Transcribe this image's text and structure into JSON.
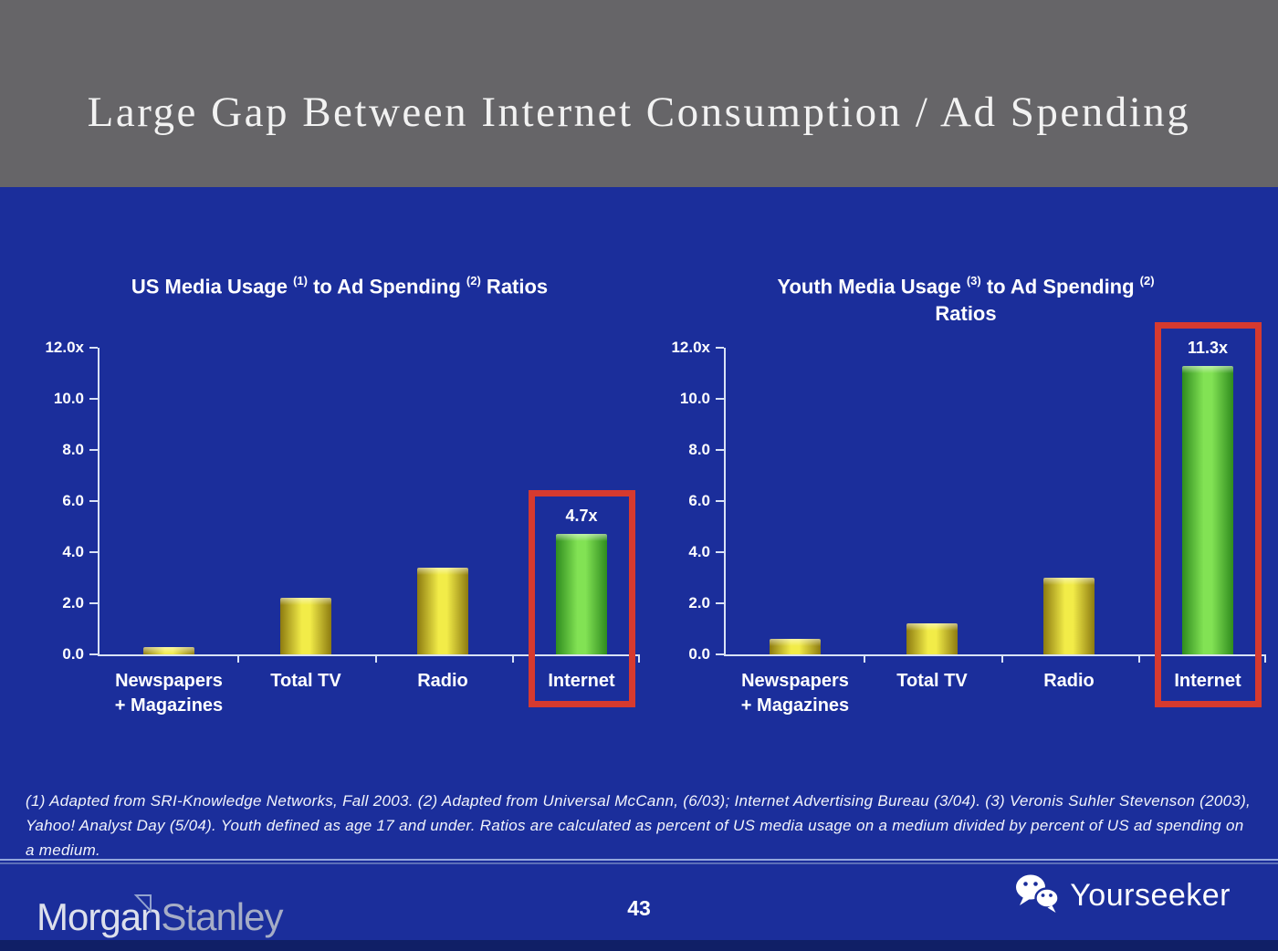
{
  "slide": {
    "title": "Large Gap Between Internet Consumption / Ad Spending",
    "page_number": "43",
    "footnote": "(1) Adapted from SRI-Knowledge Networks, Fall 2003.  (2) Adapted from Universal McCann, (6/03); Internet Advertising Bureau (3/04). (3) Veronis Suhler Stevenson (2003), Yahoo! Analyst Day (5/04).  Youth defined as age 17 and under.  Ratios are calculated as percent of US media usage on a medium divided by percent of US ad spending on a medium.",
    "brand": {
      "morgan": "Morgan",
      "stanley": "Stanley",
      "mark": "triangle-flag-icon"
    },
    "watermark": {
      "label": "Yourseeker",
      "icon": "wechat-icon"
    }
  },
  "colors": {
    "header_gray": "#666568",
    "body_blue": "#1B2E9B",
    "bottom_strip_blue": "#101F66",
    "axis_light": "#D9E2F5",
    "text_white": "#FFFFFF",
    "footnote_white": "#F2F4FB",
    "bar_yellow_center": "#F2EC48",
    "bar_yellow_edge": "#8D7B10",
    "bar_green_center": "#82E254",
    "bar_green_edge": "#2F8C1E",
    "highlight_red": "#D63A2F",
    "logo_morgan": "#DDE0EC",
    "logo_stanley": "#A6ADC6",
    "footer_rule_light": "#93A6DC",
    "footer_rule_dark": "#5C6FB8"
  },
  "chart_data": [
    {
      "type": "bar",
      "title": "US Media Usage (1) to Ad Spending (2) Ratios",
      "title_segments": [
        [
          "text",
          "US Media Usage "
        ],
        [
          "sup",
          "(1)"
        ],
        [
          "text",
          " to Ad Spending "
        ],
        [
          "sup",
          "(2)"
        ],
        [
          "text",
          " Ratios"
        ]
      ],
      "categories": [
        "Newspapers + Magazines",
        "Total TV",
        "Radio",
        "Internet"
      ],
      "categories_lines": [
        [
          "Newspapers",
          "+ Magazines"
        ],
        [
          "Total TV"
        ],
        [
          "Radio"
        ],
        [
          "Internet"
        ]
      ],
      "values": [
        0.3,
        2.2,
        3.4,
        4.7
      ],
      "bar_colors": [
        "yellow",
        "yellow",
        "yellow",
        "green"
      ],
      "data_labels": [
        null,
        null,
        null,
        "4.7x"
      ],
      "highlight_index": 3,
      "xlabel": "",
      "ylabel": "",
      "ylim": [
        0,
        12
      ],
      "yticks": [
        {
          "v": 12,
          "label": "12.0x"
        },
        {
          "v": 10,
          "label": "10.0"
        },
        {
          "v": 8,
          "label": "8.0"
        },
        {
          "v": 6,
          "label": "6.0"
        },
        {
          "v": 4,
          "label": "4.0"
        },
        {
          "v": 2,
          "label": "2.0"
        },
        {
          "v": 0,
          "label": "0.0"
        }
      ],
      "grid": false,
      "legend": "none"
    },
    {
      "type": "bar",
      "title": "Youth Media Usage (3) to Ad Spending (2) Ratios",
      "title_segments": [
        [
          "text",
          "Youth Media Usage "
        ],
        [
          "sup",
          "(3)"
        ],
        [
          "text",
          " to Ad Spending "
        ],
        [
          "sup",
          "(2)"
        ],
        [
          "br",
          ""
        ],
        [
          "text",
          "Ratios"
        ]
      ],
      "categories": [
        "Newspapers + Magazines",
        "Total TV",
        "Radio",
        "Internet"
      ],
      "categories_lines": [
        [
          "Newspapers",
          "+ Magazines"
        ],
        [
          "Total TV"
        ],
        [
          "Radio"
        ],
        [
          "Internet"
        ]
      ],
      "values": [
        0.6,
        1.2,
        3.0,
        11.3
      ],
      "bar_colors": [
        "yellow",
        "yellow",
        "yellow",
        "green"
      ],
      "data_labels": [
        null,
        null,
        null,
        "11.3x"
      ],
      "highlight_index": 3,
      "xlabel": "",
      "ylabel": "",
      "ylim": [
        0,
        12
      ],
      "yticks": [
        {
          "v": 12,
          "label": "12.0x"
        },
        {
          "v": 10,
          "label": "10.0"
        },
        {
          "v": 8,
          "label": "8.0"
        },
        {
          "v": 6,
          "label": "6.0"
        },
        {
          "v": 4,
          "label": "4.0"
        },
        {
          "v": 2,
          "label": "2.0"
        },
        {
          "v": 0,
          "label": "0.0"
        }
      ],
      "grid": false,
      "legend": "none"
    }
  ]
}
